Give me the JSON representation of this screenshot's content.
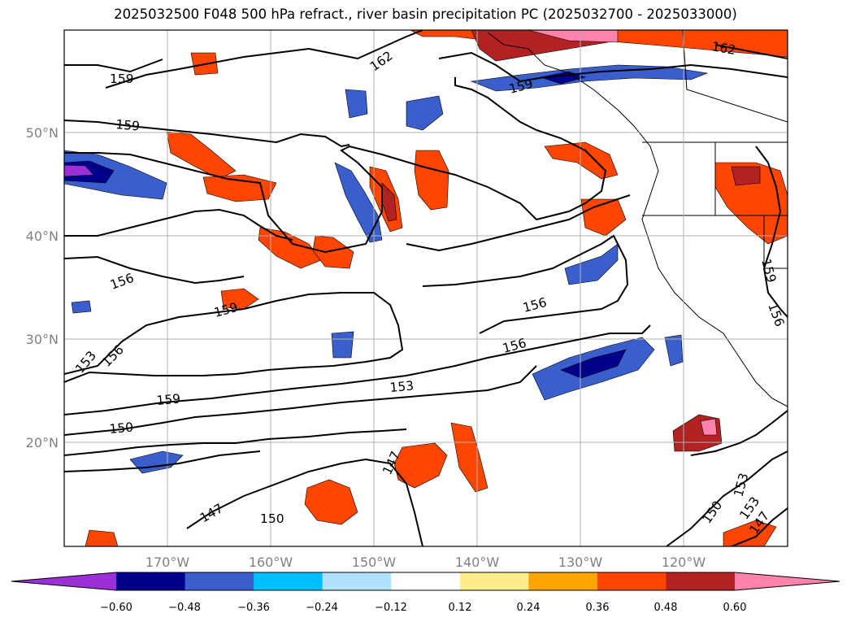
{
  "title": "2025032500 F048 500 hPa refract., river basin precipitation PC (2025032700 - 2025033000)",
  "map": {
    "lat_ticks": [
      "50°N",
      "40°N",
      "30°N",
      "20°N"
    ],
    "lon_ticks": [
      "170°W",
      "160°W",
      "150°W",
      "140°W",
      "130°W",
      "120°W"
    ],
    "extent": {
      "lon_min": -180,
      "lon_max": -110,
      "lat_min": 10,
      "lat_max": 60
    },
    "gridlines": true,
    "contour_labels": [
      "159",
      "162",
      "159",
      "162",
      "159",
      "156",
      "159",
      "153",
      "156",
      "159",
      "150",
      "156",
      "153",
      "147",
      "147",
      "150",
      "153",
      "150",
      "147",
      "153",
      "156",
      "159",
      "156"
    ]
  },
  "colorbar": {
    "ticks": [
      "−0.60",
      "−0.48",
      "−0.36",
      "−0.24",
      "−0.12",
      "0.12",
      "0.24",
      "0.36",
      "0.48",
      "0.60"
    ],
    "colors": [
      "#9b30d9",
      "#00008b",
      "#3a5fcd",
      "#00bfff",
      "#b0e2ff",
      "#ffffff",
      "#ffec8b",
      "#ffa500",
      "#ff4500",
      "#b22222",
      "#ff82ab"
    ]
  }
}
